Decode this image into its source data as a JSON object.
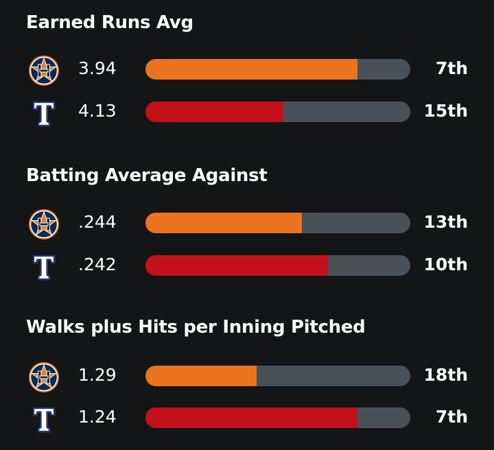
{
  "colors": {
    "astros_bar": "#ec7420",
    "rangers_bar": "#c3111c",
    "track": "#485058",
    "background": "#141517"
  },
  "sections": [
    {
      "title": "Earned Runs Avg",
      "rows": [
        {
          "team_icon": "astros-logo-icon",
          "value": "3.94",
          "rank": "7th",
          "fill_fraction": 0.8
        },
        {
          "team_icon": "rangers-logo-icon",
          "value": "4.13",
          "rank": "15th",
          "fill_fraction": 0.52
        }
      ]
    },
    {
      "title": "Batting Average Against",
      "rows": [
        {
          "team_icon": "astros-logo-icon",
          "value": ".244",
          "rank": "13th",
          "fill_fraction": 0.59
        },
        {
          "team_icon": "rangers-logo-icon",
          "value": ".242",
          "rank": "10th",
          "fill_fraction": 0.69
        }
      ]
    },
    {
      "title": "Walks plus Hits per Inning Pitched",
      "rows": [
        {
          "team_icon": "astros-logo-icon",
          "value": "1.29",
          "rank": "18th",
          "fill_fraction": 0.42
        },
        {
          "team_icon": "rangers-logo-icon",
          "value": "1.24",
          "rank": "7th",
          "fill_fraction": 0.8
        }
      ]
    }
  ]
}
